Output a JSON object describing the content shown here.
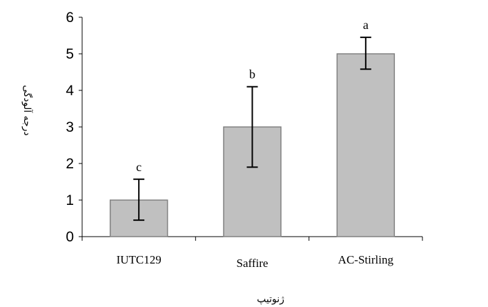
{
  "chart_data": {
    "type": "bar",
    "categories": [
      "IUTC129",
      "Saffire",
      "AC-Stirling"
    ],
    "values": [
      1,
      3,
      5
    ],
    "error_low": [
      0.45,
      1.9,
      4.58
    ],
    "error_high": [
      1.57,
      4.1,
      5.45
    ],
    "significance_letters": [
      "c",
      "b",
      "a"
    ],
    "xlabel": "ژنوتیپ",
    "ylabel": "درجه آلودگی",
    "ylim": [
      0,
      6
    ],
    "yticks": [
      "0",
      "1",
      "2",
      "3",
      "4",
      "5",
      "6"
    ],
    "grid": false,
    "legend": "none",
    "colors": {
      "bar_fill": "#c0c0c0",
      "bar_stroke": "#808080",
      "axis": "#000000",
      "error_bar": "#000000"
    }
  }
}
